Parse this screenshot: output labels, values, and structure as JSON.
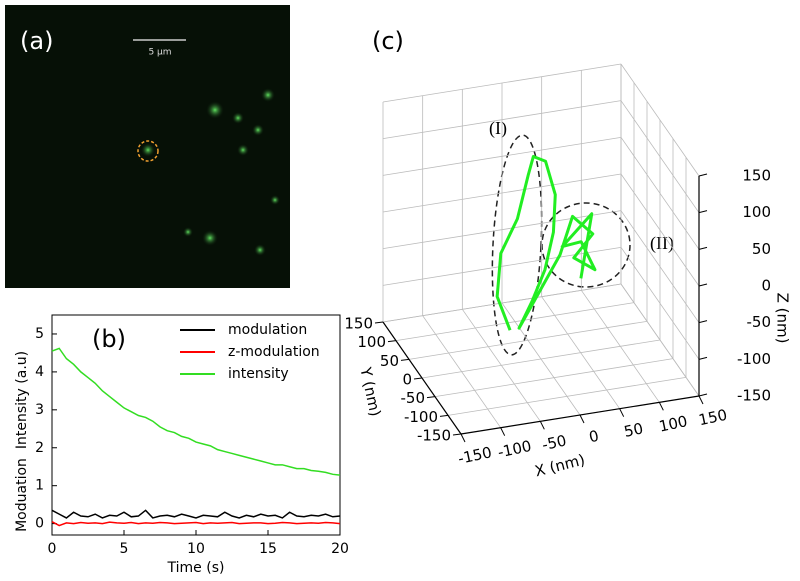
{
  "chart_data": [
    {
      "type": "image",
      "panel_label": "(a)",
      "scale_bar_label": "5 μm"
    },
    {
      "type": "line",
      "panel_label": "(b)",
      "x_label": "Time (s)",
      "y_labels": [
        "Intensity (a.u)",
        "Moduation"
      ],
      "x": [
        0,
        0.5,
        1,
        1.5,
        2,
        2.5,
        3,
        3.5,
        4,
        4.5,
        5,
        5.5,
        6,
        6.5,
        7,
        7.5,
        8,
        8.5,
        9,
        9.5,
        10,
        10.5,
        11,
        11.5,
        12,
        12.5,
        13,
        13.5,
        14,
        14.5,
        15,
        15.5,
        16,
        16.5,
        17,
        17.5,
        18,
        18.5,
        19,
        19.5,
        20
      ],
      "series": [
        {
          "name": "modulation",
          "color": "#000000",
          "values": [
            0.35,
            0.25,
            0.15,
            0.3,
            0.2,
            0.18,
            0.25,
            0.15,
            0.22,
            0.2,
            0.3,
            0.18,
            0.2,
            0.35,
            0.15,
            0.2,
            0.22,
            0.18,
            0.25,
            0.2,
            0.15,
            0.22,
            0.2,
            0.18,
            0.3,
            0.2,
            0.15,
            0.22,
            0.18,
            0.25,
            0.2,
            0.22,
            0.15,
            0.3,
            0.2,
            0.18,
            0.22,
            0.2,
            0.25,
            0.18,
            0.2
          ]
        },
        {
          "name": "z-modulation",
          "color": "#ff0000",
          "values": [
            0.05,
            -0.05,
            0.02,
            0,
            0.03,
            0.01,
            0.02,
            0,
            0.04,
            0.02,
            0.01,
            0.03,
            0,
            0.02,
            0.01,
            0.03,
            0.02,
            0,
            0.01,
            0.02,
            0.03,
            0,
            0.02,
            0.01,
            0.02,
            0.03,
            0,
            0.01,
            0.02,
            0.02,
            0,
            0.01,
            0.03,
            0.02,
            0,
            0.01,
            0.02,
            0.01,
            0.03,
            0.02,
            0
          ]
        },
        {
          "name": "intensity",
          "color": "#33dd22",
          "values": [
            4.55,
            4.62,
            4.35,
            4.2,
            4.0,
            3.85,
            3.7,
            3.5,
            3.35,
            3.2,
            3.05,
            2.95,
            2.85,
            2.8,
            2.7,
            2.55,
            2.45,
            2.4,
            2.3,
            2.25,
            2.15,
            2.1,
            2.05,
            1.95,
            1.9,
            1.85,
            1.8,
            1.75,
            1.7,
            1.65,
            1.6,
            1.55,
            1.55,
            1.5,
            1.45,
            1.45,
            1.4,
            1.38,
            1.35,
            1.3,
            1.28
          ]
        }
      ],
      "xlim": [
        0,
        20
      ],
      "xticks": [
        0,
        5,
        10,
        15,
        20
      ],
      "ylim": [
        -0.3,
        5.5
      ],
      "yticks": [
        0,
        1,
        2,
        3,
        4,
        5
      ],
      "legend": "upper right"
    },
    {
      "type": "line3d",
      "panel_label": "(c)",
      "x_label": "X (nm)",
      "y_label": "Y (nm)",
      "z_label": "Z (nm)",
      "annotations": [
        "(I)",
        "(II)"
      ],
      "color": "#22ee22",
      "x": [
        -39,
        -52,
        -49,
        -33,
        -16,
        -8,
        9,
        18,
        14,
        5,
        -8,
        -26,
        24,
        43,
        62,
        43,
        68,
        49,
        30,
        64,
        47
      ],
      "y": [
        0,
        10,
        5,
        -10,
        0,
        5,
        10,
        0,
        -5,
        0,
        10,
        5,
        0,
        10,
        -10,
        5,
        0,
        -5,
        10,
        0,
        -10
      ],
      "z": [
        -104,
        -61,
        0,
        52,
        104,
        125,
        113,
        71,
        23,
        -29,
        -75,
        -106,
        -12,
        32,
        15,
        -22,
        -40,
        4,
        -7,
        37,
        -43
      ],
      "xlim": [
        -150,
        150
      ],
      "ylim": [
        -150,
        150
      ],
      "zlim": [
        -150,
        150
      ],
      "xticks": [
        -150,
        -100,
        -50,
        0,
        50,
        100,
        150
      ],
      "yticks": [
        -150,
        -100,
        -50,
        0,
        50,
        100,
        150
      ],
      "zticks": [
        -150,
        -100,
        -50,
        0,
        50,
        100,
        150
      ],
      "grid": true
    }
  ]
}
